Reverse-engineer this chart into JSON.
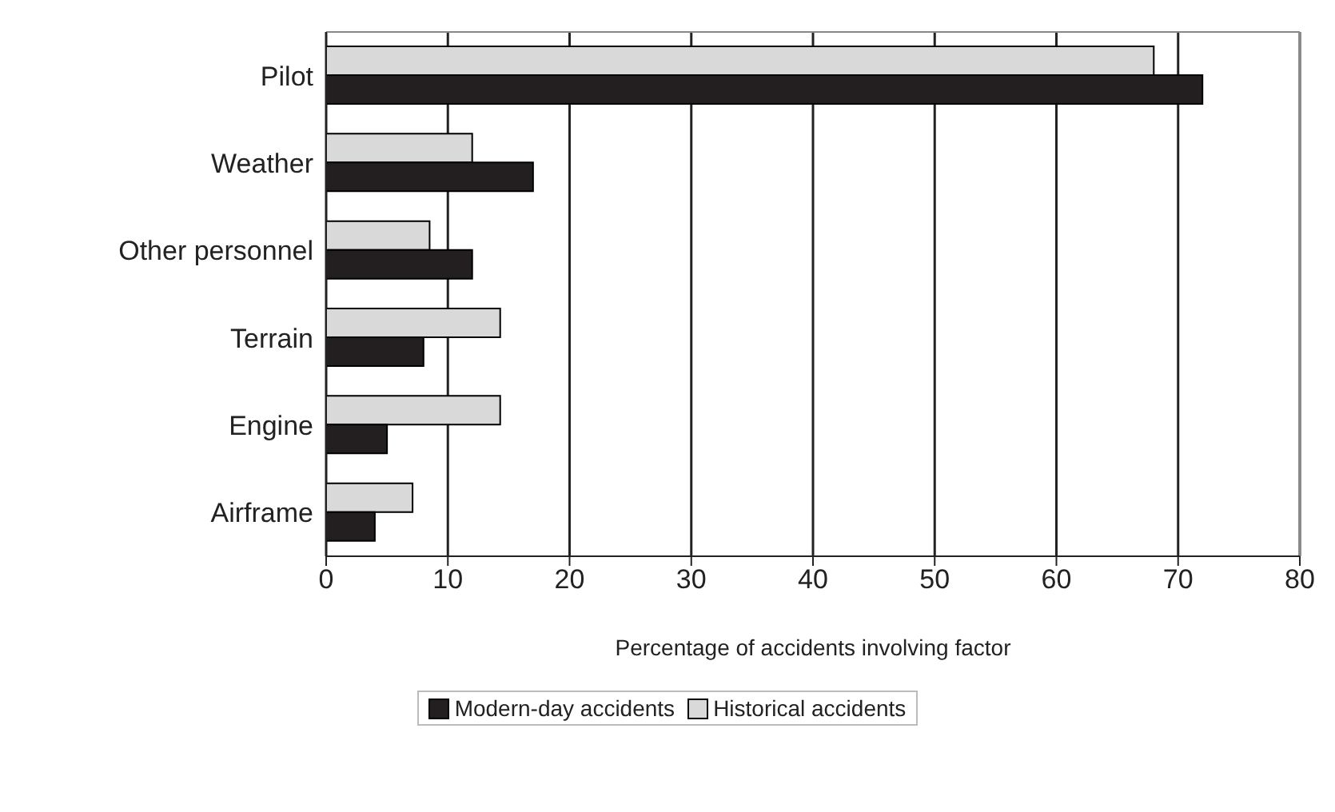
{
  "chart_data": {
    "type": "bar",
    "orientation": "horizontal",
    "xlabel": "Percentage of accidents involving factor",
    "categories": [
      "Pilot",
      "Weather",
      "Other personnel",
      "Terrain",
      "Engine",
      "Airframe"
    ],
    "series": [
      {
        "name": "Modern-day accidents",
        "color": "#231f20",
        "values": [
          72,
          17,
          12,
          8,
          5,
          4
        ]
      },
      {
        "name": "Historical accidents",
        "color": "#d9d9d9",
        "values": [
          68,
          12,
          8.5,
          14.3,
          14.3,
          7.1
        ]
      }
    ],
    "xlim": [
      0,
      80
    ],
    "xticks": [
      0,
      10,
      20,
      30,
      40,
      50,
      60,
      70,
      80
    ],
    "grid": "x",
    "legend": "bottom"
  }
}
